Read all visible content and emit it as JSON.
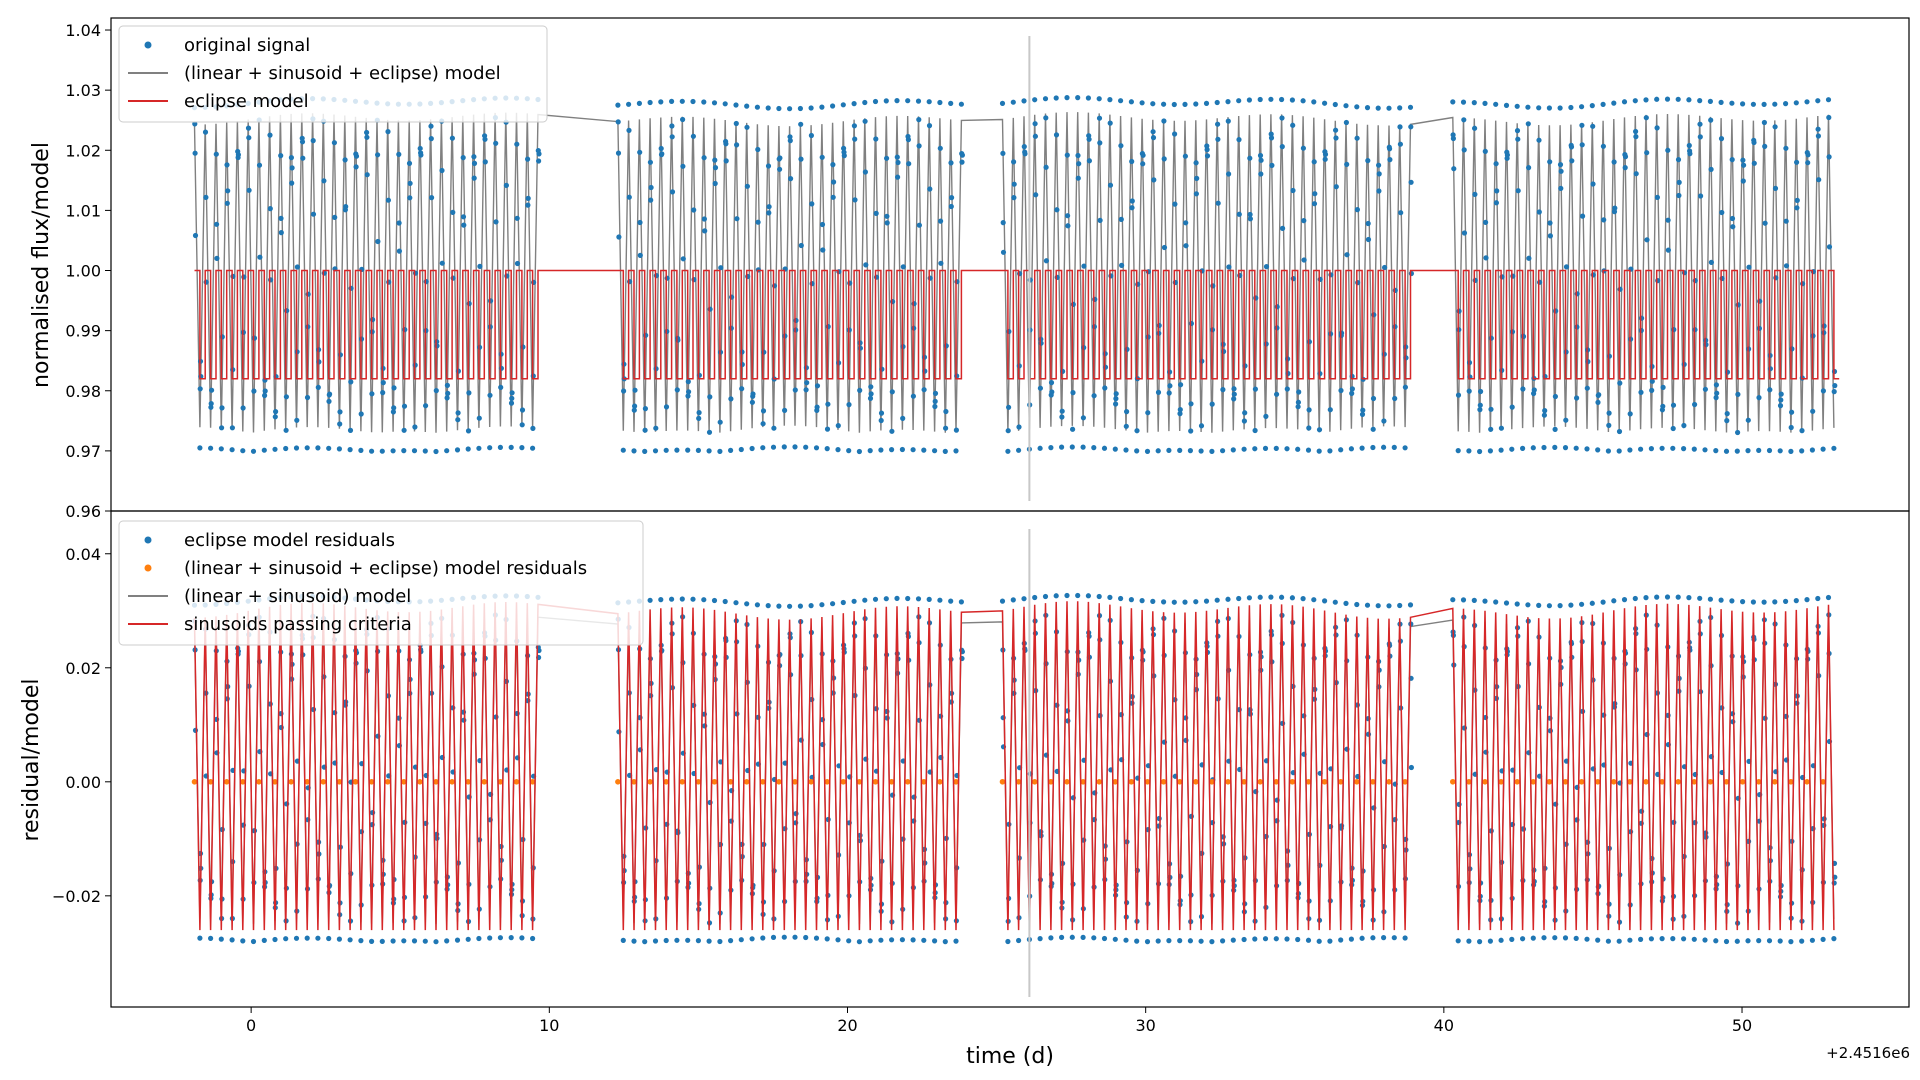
{
  "chart_data": [
    {
      "type": "scatter",
      "panel": "top",
      "ylabel": "normalised flux/model",
      "ylim": [
        0.96,
        1.042
      ],
      "xlim": [
        -4.7,
        55.6
      ],
      "yticks": [
        0.96,
        0.97,
        0.98,
        0.99,
        1.0,
        1.01,
        1.02,
        1.03,
        1.04
      ],
      "ytick_labels": [
        "0.96",
        "0.97",
        "0.98",
        "0.99",
        "1.00",
        "1.01",
        "1.02",
        "1.03",
        "1.04"
      ],
      "segments": [
        [
          -1.9,
          9.7
        ],
        [
          12.3,
          23.9
        ],
        [
          25.2,
          39.0
        ],
        [
          40.3,
          53.1
        ]
      ],
      "vertical_marker_x": 26.1,
      "period": 0.36,
      "legend_position": "upper left",
      "legend": [
        "original signal",
        "(linear + sinusoid + eclipse) model",
        "eclipse model"
      ],
      "series": [
        {
          "name": "original signal",
          "kind": "points",
          "color": "#1f77b4",
          "low": 0.968,
          "high": 1.031
        },
        {
          "name": "(linear + sinusoid + eclipse) model",
          "kind": "line",
          "color": "#808080",
          "low": 0.97,
          "high": 1.03
        },
        {
          "name": "eclipse model",
          "kind": "line",
          "color": "#d62728",
          "low": 0.982,
          "high": 1.0
        }
      ]
    },
    {
      "type": "scatter",
      "panel": "bottom",
      "xlabel": "time (d)",
      "ylabel": "residual/model",
      "x_offset_label": "+2.4516e6",
      "ylim": [
        -0.0395,
        0.0475
      ],
      "xlim": [
        -4.7,
        55.6
      ],
      "xticks": [
        0,
        10,
        20,
        30,
        40,
        50
      ],
      "xtick_labels": [
        "0",
        "10",
        "20",
        "30",
        "40",
        "50"
      ],
      "yticks": [
        -0.02,
        0.0,
        0.02,
        0.04
      ],
      "ytick_labels": [
        "−0.02",
        "0.00",
        "0.02",
        "0.04"
      ],
      "segments": [
        [
          -1.9,
          9.7
        ],
        [
          12.3,
          23.9
        ],
        [
          25.2,
          39.0
        ],
        [
          40.3,
          53.1
        ]
      ],
      "vertical_marker_x": 26.1,
      "period": 0.36,
      "legend_position": "upper left",
      "legend": [
        "eclipse model residuals",
        "(linear + sinusoid + eclipse) model residuals",
        "(linear + sinusoid) model",
        "sinusoids passing criteria"
      ],
      "series": [
        {
          "name": "eclipse model residuals",
          "kind": "points",
          "color": "#1f77b4",
          "low": -0.03,
          "high": 0.035
        },
        {
          "name": "(linear + sinusoid + eclipse) model residuals",
          "kind": "points",
          "color": "#ff7f0e",
          "low": 0.0,
          "high": 0.0
        },
        {
          "name": "(linear + sinusoid) model",
          "kind": "line",
          "color": "#808080",
          "low": -0.028,
          "high": 0.033
        },
        {
          "name": "sinusoids passing criteria",
          "kind": "line",
          "color": "#d62728",
          "low": -0.028,
          "high": 0.038
        }
      ]
    }
  ]
}
